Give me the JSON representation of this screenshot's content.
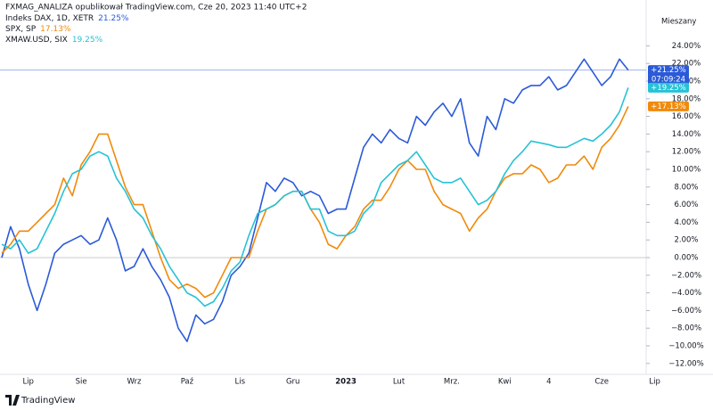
{
  "header": "FXMAG_ANALIZA opublikował TradingView.com, Cze 20, 2023 11:40 UTC+2",
  "brand": "TradingView",
  "chart_data": {
    "type": "line",
    "scale_label": "Mieszany",
    "categories": [
      null,
      null,
      null,
      "Lip",
      null,
      null,
      null,
      null,
      null,
      "Sie",
      null,
      null,
      null,
      null,
      null,
      "Wrz",
      null,
      null,
      null,
      null,
      null,
      "Paź",
      null,
      null,
      null,
      null,
      null,
      "Lis",
      null,
      null,
      null,
      null,
      null,
      "Gru",
      null,
      null,
      null,
      null,
      null,
      "2023",
      null,
      null,
      null,
      null,
      null,
      "Lut",
      null,
      null,
      null,
      null,
      null,
      "Mrz.",
      null,
      null,
      null,
      null,
      null,
      "Kwi",
      null,
      null,
      null,
      null,
      "4",
      null,
      null,
      null,
      null,
      null,
      "Cze",
      null,
      null,
      null,
      null,
      null,
      "Lip"
    ],
    "ylim": [
      -13,
      27.5
    ],
    "yticks": [
      {
        "value": 24,
        "label": "24.00%"
      },
      {
        "value": 22,
        "label": "22.00%"
      },
      {
        "value": 20,
        "label": "20.00%"
      },
      {
        "value": 18,
        "label": "18.00%"
      },
      {
        "value": 16,
        "label": "16.00%"
      },
      {
        "value": 14,
        "label": "14.00%"
      },
      {
        "value": 12,
        "label": "12.00%"
      },
      {
        "value": 10,
        "label": "10.00%"
      },
      {
        "value": 8,
        "label": "8.00%"
      },
      {
        "value": 6,
        "label": "6.00%"
      },
      {
        "value": 4,
        "label": "4.00%"
      },
      {
        "value": 2,
        "label": "2.00%"
      },
      {
        "value": 0,
        "label": "0.00%"
      },
      {
        "value": -2,
        "label": "−2.00%"
      },
      {
        "value": -4,
        "label": "−4.00%"
      },
      {
        "value": -6,
        "label": "−6.00%"
      },
      {
        "value": -8,
        "label": "−8.00%"
      },
      {
        "value": -10,
        "label": "−10.00%"
      },
      {
        "value": -12,
        "label": "−12.00%"
      }
    ],
    "countdown": "07:09:24",
    "series": [
      {
        "name": "Indeks DAX, 1D, XETR",
        "color": "#2b5ad8",
        "legend_label": "21.25%",
        "price_label": "+21.25%",
        "values": [
          0,
          3.5,
          1,
          -3,
          -6,
          -3,
          0.5,
          1.5,
          2,
          2.5,
          1.5,
          2,
          4.5,
          2,
          -1.5,
          -1,
          1,
          -1,
          -2.5,
          -4.5,
          -8,
          -9.5,
          -6.5,
          -7.5,
          -7,
          -5,
          -2,
          -1,
          0.5,
          4.5,
          8.5,
          7.5,
          9,
          8.5,
          7,
          7.5,
          7,
          5,
          5.5,
          5.5,
          9,
          12.5,
          14,
          13,
          14.5,
          13.5,
          13,
          16,
          15,
          16.5,
          17.5,
          16,
          18,
          13,
          11.5,
          16,
          14.5,
          18,
          17.5,
          19,
          19.5,
          19.5,
          20.5,
          19,
          19.5,
          21,
          22.5,
          21,
          19.5,
          20.5,
          22.5,
          21.25,
          null,
          null,
          null
        ]
      },
      {
        "name": "SPX, SP",
        "color": "#f08a0c",
        "legend_label": "17.13%",
        "price_label": "+17.13%",
        "values": [
          0.5,
          1.5,
          3,
          3,
          4,
          5,
          6,
          9,
          7,
          10.5,
          12,
          14,
          14,
          11,
          8,
          6,
          6,
          3,
          0,
          -2.5,
          -3.5,
          -3,
          -3.5,
          -4.5,
          -4,
          -2,
          0,
          0,
          0,
          3,
          5.5,
          6,
          7,
          7.5,
          7.5,
          5.5,
          4,
          1.5,
          1,
          2.5,
          3.5,
          5.5,
          6.5,
          6.5,
          8,
          10,
          11,
          10,
          10,
          7.5,
          6,
          5.5,
          5,
          3,
          4.5,
          5.5,
          7.5,
          9,
          9.5,
          9.5,
          10.5,
          10,
          8.5,
          9,
          10.5,
          10.5,
          11.5,
          10,
          12.5,
          13.5,
          15,
          17.13,
          null,
          null,
          null
        ]
      },
      {
        "name": "XMAW.USD, SIX",
        "color": "#26c2d6",
        "legend_label": "19.25%",
        "price_label": "+19.25%",
        "values": [
          1.5,
          1,
          2,
          0.5,
          1,
          3,
          5,
          7.5,
          9.5,
          10,
          11.5,
          12,
          11.5,
          9,
          7.5,
          5.5,
          4.5,
          2.5,
          1,
          -1,
          -2.5,
          -4,
          -4.5,
          -5.5,
          -5,
          -3.5,
          -1.5,
          -0.5,
          2.5,
          5,
          5.5,
          6,
          7,
          7.5,
          7.5,
          5.5,
          5.5,
          3,
          2.5,
          2.5,
          3,
          5,
          6,
          8.5,
          9.5,
          10.5,
          11,
          12,
          10.5,
          9,
          8.5,
          8.5,
          9,
          7.5,
          6,
          6.5,
          7.5,
          9.5,
          11,
          12,
          13.2,
          13,
          12.8,
          12.5,
          12.5,
          13,
          13.5,
          13.2,
          14,
          15,
          16.5,
          19.25,
          null,
          null,
          null
        ]
      }
    ]
  }
}
